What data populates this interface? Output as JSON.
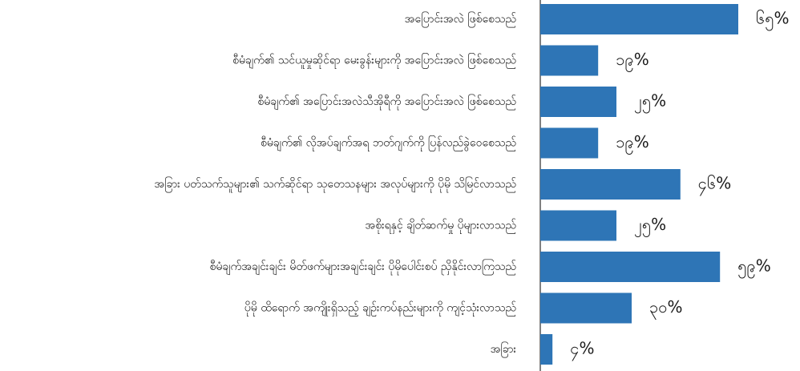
{
  "chart_data": {
    "type": "bar",
    "orientation": "horizontal",
    "title": "",
    "xlabel": "",
    "ylabel": "",
    "bar_color": "#2e75b6",
    "axis_color": "#000000",
    "xlim": [
      0,
      70
    ],
    "grid": false,
    "legend": "none",
    "categories": [
      "အပြောင်းအလဲ ဖြစ်စေသည်",
      "စီမံချက်၏  သင်ယူမှုဆိုင်ရာ မေးခွန်းများကို အပြောင်းအလဲ ဖြစ်စေသည်",
      "စီမံချက်၏ အပြောင်းအလဲသီအိုရီကို အပြောင်းအလဲ ဖြစ်စေသည်",
      "စီမံချက်၏ လိုအပ်ချက်အရ ဘတ်ဂျက်ကို ပြန်လည်ခွဲဝေစေသည်",
      "အခြား ပတ်သက်သူများ၏ သက်ဆိုင်ရာ သုတေသနများ အလုပ်များကို ပိုမို သိမြင်လာသည်",
      "အစိုးရနှင့် ချိတ်ဆက်မှု ပိုများလာသည်",
      "စီမံချက်အချင်းချင်း မိတ်ဖက်များအချင်းချင်း ပိုမိုပေါင်းစပ် ညှိနိုင်းလာကြသည်",
      "ပိုမို ထိရောက် အကျိုးရှိသည့် ချဉ်းကပ်နည်းများကို ကျင့်သုံးလာသည်",
      "အခြား"
    ],
    "values": [
      65,
      19,
      25,
      19,
      46,
      25,
      59,
      30,
      4
    ],
    "value_labels": [
      "၆၅%",
      "၁၉%",
      "၂၅%",
      "၁၉%",
      "၄၆%",
      "၂၅%",
      "၅၉%",
      "၃၀%",
      "၄%"
    ]
  }
}
